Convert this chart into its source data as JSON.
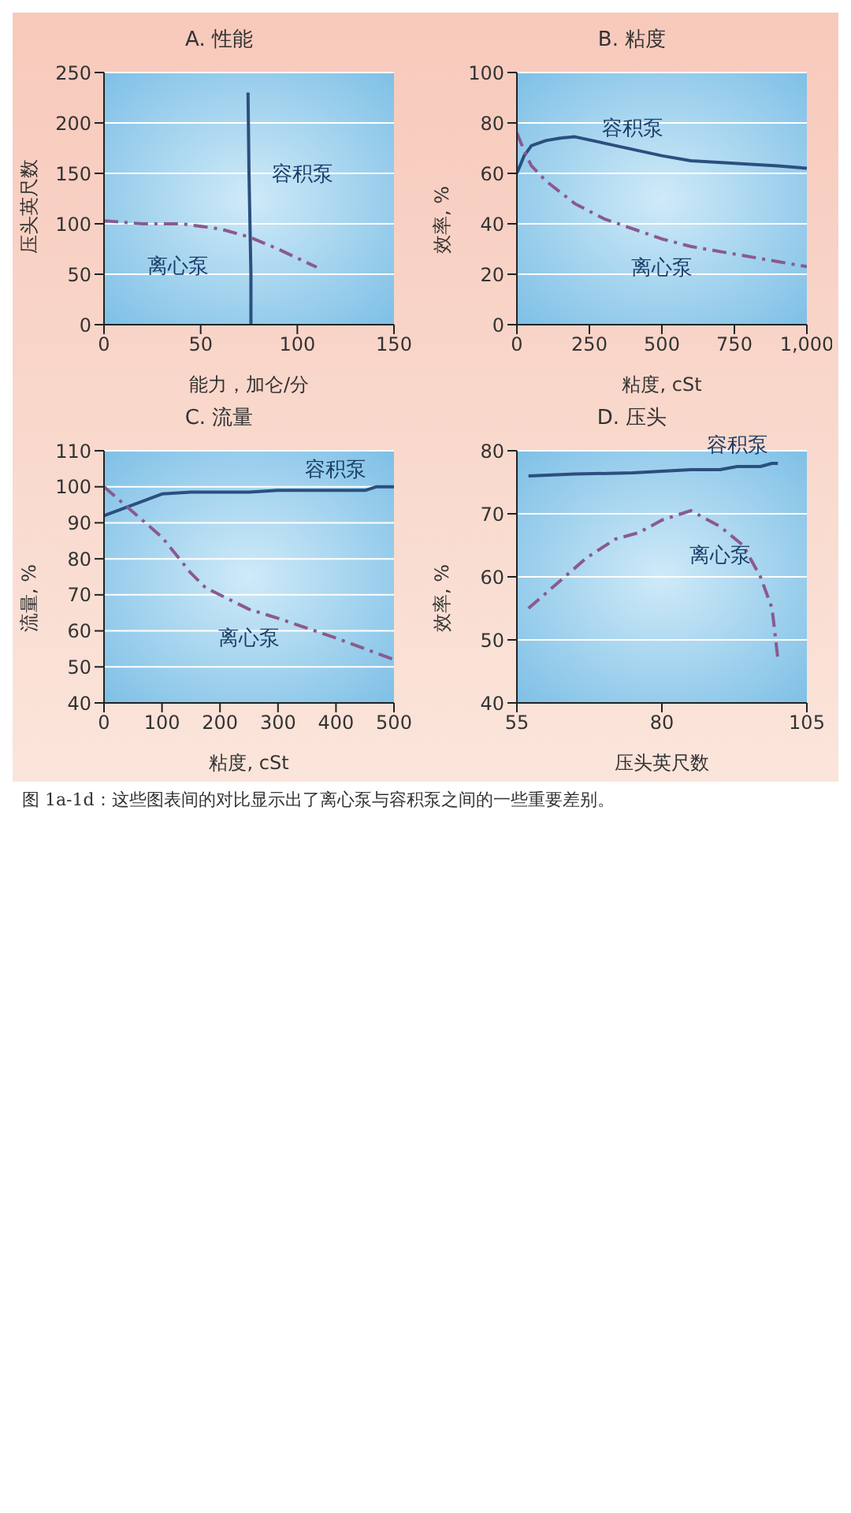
{
  "chart_data": [
    {
      "type": "line",
      "title": "A. 性能",
      "xlabel": "能力，加仑/分",
      "ylabel": "压头英尺数",
      "xlim": [
        0,
        150
      ],
      "xticks": [
        0,
        50,
        100,
        150
      ],
      "ylim": [
        0,
        250
      ],
      "yticks": [
        0,
        50,
        100,
        150,
        200,
        250
      ],
      "grid": "y",
      "line_style": "solid",
      "series": [
        {
          "name": "容积泵",
          "color": "#2b4f7e",
          "x": [
            76,
            76,
            75.5,
            75,
            74.5
          ],
          "values": [
            0,
            50,
            100,
            150,
            230
          ]
        },
        {
          "name": "离心泵",
          "color": "#8a5a8e",
          "line_style": "dashed",
          "x": [
            0,
            20,
            40,
            60,
            75,
            90,
            110
          ],
          "values": [
            103,
            100,
            100,
            95,
            87,
            75,
            57
          ]
        }
      ]
    },
    {
      "type": "line",
      "title": "B. 粘度",
      "xlabel": "粘度, cSt",
      "ylabel": "效率, %",
      "xlim": [
        0,
        1000
      ],
      "xticks": [
        0,
        250,
        500,
        750,
        {
          "value": 1000,
          "label": "1,000"
        }
      ],
      "ylim": [
        0,
        100
      ],
      "yticks": [
        0,
        20,
        40,
        60,
        80,
        100
      ],
      "grid": "y",
      "line_style": "solid",
      "series": [
        {
          "name": "容积泵",
          "color": "#2b4f7e",
          "x": [
            0,
            25,
            50,
            100,
            150,
            200,
            300,
            400,
            500,
            600,
            750,
            900,
            1000
          ],
          "values": [
            60,
            67,
            71,
            73,
            74,
            74.5,
            72,
            69.5,
            67,
            65,
            64,
            63,
            62
          ]
        },
        {
          "name": "离心泵",
          "color": "#8a5a8e",
          "line_style": "dashed",
          "x": [
            0,
            25,
            50,
            100,
            200,
            300,
            400,
            500,
            600,
            750,
            900,
            1000
          ],
          "values": [
            76,
            69,
            63,
            57,
            48,
            42,
            38,
            34,
            31,
            28,
            25,
            23
          ]
        }
      ]
    },
    {
      "type": "line",
      "title": "C. 流量",
      "xlabel": "粘度, cSt",
      "ylabel": "流量, %",
      "xlim": [
        0,
        500
      ],
      "xticks": [
        0,
        100,
        200,
        300,
        400,
        500
      ],
      "ylim": [
        40,
        110
      ],
      "yticks": [
        40,
        50,
        60,
        70,
        80,
        90,
        100,
        110
      ],
      "grid": "y",
      "line_style": "solid",
      "series": [
        {
          "name": "容积泵",
          "color": "#2b4f7e",
          "x": [
            0,
            50,
            100,
            150,
            250,
            300,
            400,
            450,
            470,
            500
          ],
          "values": [
            92,
            95,
            98,
            98.5,
            98.5,
            99,
            99,
            99,
            100,
            100
          ]
        },
        {
          "name": "离心泵",
          "color": "#8a5a8e",
          "line_style": "dashed",
          "x": [
            0,
            50,
            100,
            150,
            175,
            250,
            300,
            400,
            500
          ],
          "values": [
            100,
            93,
            86,
            76,
            72,
            66,
            63.5,
            58,
            52
          ]
        }
      ]
    },
    {
      "type": "line",
      "title": "D. 压头",
      "xlabel": "压头英尺数",
      "ylabel": "效率, %",
      "xlim": [
        55,
        105
      ],
      "xticks": [
        55,
        80,
        105
      ],
      "ylim": [
        40,
        80
      ],
      "yticks": [
        40,
        50,
        60,
        70,
        80
      ],
      "grid": "y",
      "line_style": "solid",
      "series": [
        {
          "name": "容积泵",
          "color": "#2b4f7e",
          "x": [
            57,
            65,
            75,
            85,
            90,
            93,
            97,
            99,
            100
          ],
          "values": [
            76,
            76.3,
            76.5,
            77,
            77,
            77.5,
            77.5,
            78,
            78
          ]
        },
        {
          "name": "离心泵",
          "color": "#8a5a8e",
          "line_style": "dashed",
          "x": [
            57,
            62,
            67,
            72,
            76,
            80,
            85,
            90,
            94,
            97,
            99,
            100
          ],
          "values": [
            55,
            59,
            63,
            66,
            67,
            69,
            70.5,
            68,
            65,
            60,
            55,
            47
          ]
        }
      ],
      "annotations": [
        "图 1a-1d：这些图表间的对比显示出了离心泵与容积泵之间的一些重要差别。"
      ]
    }
  ]
}
